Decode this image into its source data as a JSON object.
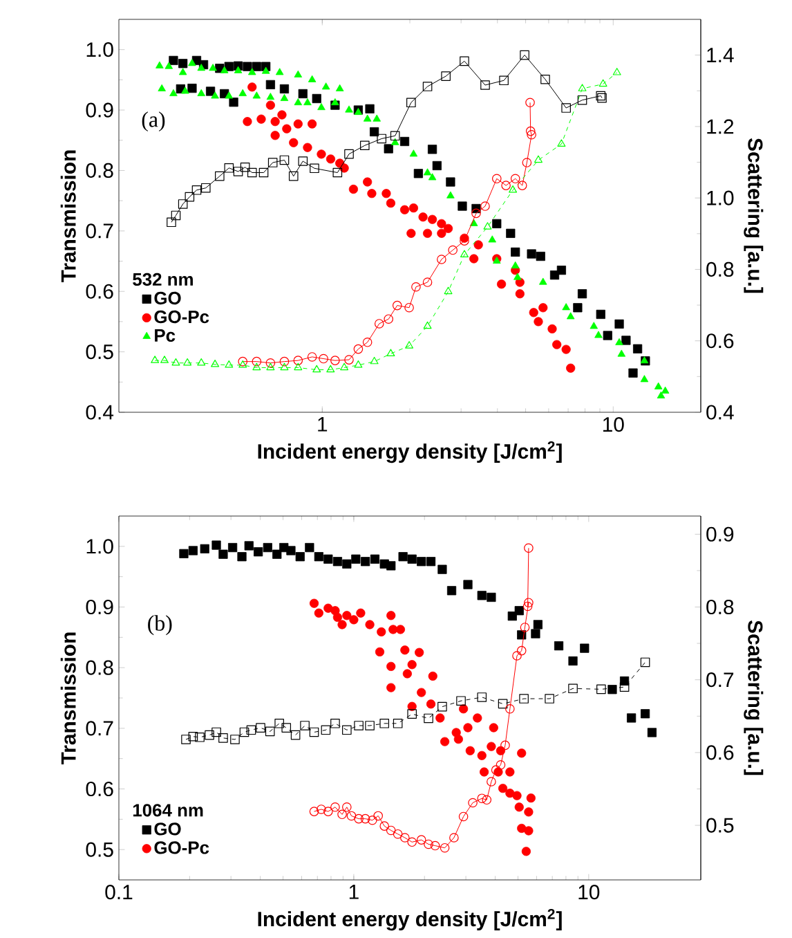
{
  "chart_data": [
    {
      "type": "scatter",
      "xlabel": "Incident energy density [J/cm$^{2}$]",
      "ylabel": "Transmission",
      "y2label": "Scattering [a.u.]",
      "legend_title": "532 nm",
      "legend": "bottom left",
      "log": "x",
      "annotations": [
        "(a)"
      ],
      "xlim": [
        0.2,
        20
      ],
      "xticks": [
        1,
        10
      ],
      "ylim": [
        0.4,
        1.05
      ],
      "yticks": [
        0.4,
        0.5,
        0.6,
        0.7,
        0.8,
        0.9,
        {
          "value": 1.0,
          "label": "1.0"
        }
      ],
      "y2lim": [
        0.4,
        1.5
      ],
      "y2ticks": [
        0.4,
        0.6,
        0.8,
        {
          "value": 1.0,
          "label": "1.0"
        },
        1.2,
        1.4
      ],
      "series": [
        {
          "name": "GO",
          "color": "#000000",
          "marker": "square",
          "x": [
            0.308,
            0.332,
            0.37,
            0.391,
            0.444,
            0.478,
            0.514,
            0.553,
            0.595,
            0.64,
            0.326,
            0.357,
            0.413,
            0.461,
            0.496,
            0.664,
            0.741,
            0.858,
            0.957,
            1.107,
            1.33,
            1.457,
            1.51,
            1.69,
            1.92,
            2.39,
            2.14,
            2.48,
            2.76,
            3.03,
            3.38,
            3.98,
            4.44,
            4.61,
            5.24,
            5.63,
            6.29,
            6.64,
            7.83,
            7.55,
            9.06,
            9.57,
            10.49,
            11.07,
            12.13,
            11.7,
            12.9
          ],
          "values": [
            0.982,
            0.977,
            0.982,
            0.975,
            0.969,
            0.972,
            0.973,
            0.972,
            0.972,
            0.972,
            0.935,
            0.936,
            0.931,
            0.927,
            0.913,
            0.942,
            0.935,
            0.927,
            0.919,
            0.908,
            0.9,
            0.902,
            0.864,
            0.836,
            0.848,
            0.835,
            0.795,
            0.808,
            0.781,
            0.741,
            0.737,
            0.712,
            0.696,
            0.665,
            0.662,
            0.658,
            0.627,
            0.635,
            0.596,
            0.573,
            0.562,
            0.527,
            0.546,
            0.519,
            0.505,
            0.465,
            0.485
          ]
        },
        {
          "name": "GO-Pc",
          "color": "#ff0000",
          "marker": "circle",
          "x": [
            0.574,
            0.553,
            0.617,
            0.664,
            0.689,
            0.727,
            0.755,
            0.826,
            0.923,
            0.689,
            0.797,
            0.89,
            0.993,
            1.069,
            1.149,
            1.19,
            1.28,
            1.43,
            1.48,
            1.66,
            1.72,
            1.92,
            2.06,
            2.22,
            2.39,
            2.57,
            2.02,
            2.3,
            2.57,
            2.71,
            3.08,
            3.44,
            3.32,
            3.98,
            4.61,
            4.78,
            4.13,
            4.78,
            5.33,
            5.74,
            5.53,
            6.17,
            6.4,
            6.89,
            7.14
          ],
          "values": [
            0.938,
            0.881,
            0.885,
            0.908,
            0.881,
            0.892,
            0.869,
            0.877,
            0.877,
            0.858,
            0.846,
            0.838,
            0.827,
            0.819,
            0.812,
            0.804,
            0.769,
            0.781,
            0.762,
            0.762,
            0.746,
            0.735,
            0.738,
            0.723,
            0.719,
            0.712,
            0.696,
            0.696,
            0.696,
            0.704,
            0.688,
            0.677,
            0.654,
            0.654,
            0.635,
            0.615,
            0.612,
            0.596,
            0.565,
            0.573,
            0.55,
            0.538,
            0.512,
            0.504,
            0.473
          ]
        },
        {
          "name": "Pc",
          "color": "#00ff00",
          "marker": "triangle",
          "x": [
            0.276,
            0.297,
            0.332,
            0.357,
            0.384,
            0.421,
            0.461,
            0.514,
            0.574,
            0.64,
            0.714,
            0.826,
            0.923,
            1.03,
            1.149,
            0.281,
            0.308,
            0.338,
            0.384,
            0.428,
            0.478,
            0.533,
            0.595,
            0.664,
            0.741,
            0.826,
            0.89,
            0.993,
            1.107,
            1.236,
            1.33,
            1.43,
            1.54,
            1.78,
            2.06,
            2.3,
            2.39,
            2.76,
            3.32,
            3.84,
            3.98,
            4.61,
            4.69,
            5.74,
            6.89,
            7.14,
            8.58,
            8.9,
            10.49,
            10.68,
            12.8,
            12.8,
            14.3,
            15.1,
            14.6
          ],
          "values": [
            0.973,
            0.972,
            0.962,
            0.977,
            0.969,
            0.969,
            0.965,
            0.965,
            0.962,
            0.964,
            0.962,
            0.958,
            0.95,
            0.938,
            0.935,
            0.935,
            0.927,
            0.931,
            0.927,
            0.923,
            0.923,
            0.927,
            0.923,
            0.921,
            0.919,
            0.912,
            0.912,
            0.904,
            0.912,
            0.9,
            0.896,
            0.885,
            0.885,
            0.846,
            0.827,
            0.796,
            0.788,
            0.758,
            0.712,
            0.685,
            0.65,
            0.642,
            0.623,
            0.615,
            0.573,
            0.558,
            0.542,
            0.527,
            0.515,
            0.496,
            0.485,
            0.454,
            0.442,
            0.435,
            0.427
          ]
        },
        {
          "type": "line",
          "axis": "y2",
          "color": "#000000",
          "marker": "square",
          "line_style": "solid",
          "x": [
            0.303,
            0.314,
            0.332,
            0.35,
            0.37,
            0.398,
            0.444,
            0.478,
            0.514,
            0.543,
            0.574,
            0.629,
            0.676,
            0.741,
            0.797,
            0.858,
            0.94,
            1.128,
            1.236,
            1.4,
            1.6,
            1.78,
            2.02,
            2.3,
            2.66,
            3.08,
            3.63,
            4.21,
            4.96,
            5.84,
            6.89,
            7.83,
            9.06,
            9.15
          ],
          "values": [
            0.932,
            0.951,
            0.983,
            1.003,
            1.022,
            1.028,
            1.061,
            1.084,
            1.074,
            1.086,
            1.071,
            1.071,
            1.099,
            1.106,
            1.061,
            1.103,
            1.083,
            1.071,
            1.123,
            1.147,
            1.166,
            1.174,
            1.267,
            1.312,
            1.341,
            1.383,
            1.316,
            1.329,
            1.4,
            1.332,
            1.252,
            1.274,
            1.286,
            1.28
          ]
        },
        {
          "type": "line",
          "axis": "y2",
          "color": "#ff0000",
          "marker": "circle",
          "line_style": "solid",
          "x": [
            0.533,
            0.595,
            0.664,
            0.741,
            0.826,
            0.923,
            1.01,
            1.107,
            1.236,
            1.33,
            1.43,
            1.57,
            1.69,
            1.81,
            1.99,
            2.1,
            2.3,
            2.57,
            2.81,
            3.08,
            3.38,
            3.63,
            3.98,
            4.28,
            4.61,
            4.87,
            5.05,
            5.24,
            5.2,
            5.18
          ],
          "values": [
            0.542,
            0.542,
            0.538,
            0.542,
            0.545,
            0.555,
            0.55,
            0.545,
            0.547,
            0.577,
            0.596,
            0.648,
            0.661,
            0.699,
            0.693,
            0.751,
            0.764,
            0.828,
            0.854,
            0.88,
            0.957,
            0.977,
            1.054,
            1.035,
            1.054,
            1.035,
            1.099,
            1.177,
            1.187,
            1.267
          ]
        },
        {
          "type": "line",
          "axis": "y2",
          "color": "#00ff00",
          "marker": "triangle",
          "line_style": "dashed",
          "x": [
            0.266,
            0.287,
            0.314,
            0.344,
            0.384,
            0.428,
            0.478,
            0.533,
            0.595,
            0.664,
            0.741,
            0.826,
            0.957,
            1.068,
            1.19,
            1.33,
            1.51,
            1.72,
            1.99,
            2.3,
            2.71,
            3.08,
            3.7,
            4.52,
            5.53,
            6.64,
            7.83,
            9.23,
            10.3
          ],
          "values": [
            0.545,
            0.545,
            0.538,
            0.538,
            0.538,
            0.534,
            0.532,
            0.532,
            0.525,
            0.525,
            0.525,
            0.525,
            0.519,
            0.519,
            0.525,
            0.532,
            0.542,
            0.564,
            0.586,
            0.641,
            0.738,
            0.841,
            0.919,
            1.022,
            1.106,
            1.151,
            1.306,
            1.319,
            1.351
          ]
        }
      ]
    },
    {
      "type": "scatter",
      "xlabel": "Incident energy density [J/cm$^{2}$]",
      "ylabel": "Transmission",
      "y2label": "Scattering [a.u.]",
      "legend_title": "1064 nm",
      "legend": "bottom left",
      "log": "x",
      "annotations": [
        "(b)"
      ],
      "xlim": [
        0.1,
        30
      ],
      "xticks": [
        0.1,
        1,
        10
      ],
      "ylim": [
        0.45,
        1.05
      ],
      "yticks": [
        0.5,
        0.6,
        0.7,
        0.8,
        0.9,
        {
          "value": 1.0,
          "label": "1.0"
        }
      ],
      "y2lim": [
        0.425,
        0.925
      ],
      "y2ticks": [
        0.5,
        0.6,
        0.7,
        0.8,
        0.9
      ],
      "series": [
        {
          "name": "GO",
          "color": "#000000",
          "marker": "square",
          "x": [
            0.189,
            0.207,
            0.232,
            0.26,
            0.278,
            0.305,
            0.334,
            0.358,
            0.392,
            0.43,
            0.471,
            0.504,
            0.54,
            0.591,
            0.648,
            0.71,
            0.778,
            0.853,
            0.934,
            1.02,
            1.12,
            1.23,
            1.35,
            1.44,
            1.62,
            1.77,
            1.94,
            2.13,
            2.38,
            2.61,
            3.06,
            3.51,
            3.85,
            4.73,
            5.06,
            5.18,
            5.94,
            6.08,
            7.46,
            8.57,
            9.6,
            12.6,
            14.2,
            15.2,
            17.4,
            18.6
          ],
          "values": [
            0.988,
            0.993,
            0.996,
            1.002,
            0.987,
            0.998,
            0.983,
            1.001,
            0.991,
            0.998,
            0.987,
            0.998,
            0.993,
            0.983,
            0.998,
            0.983,
            0.979,
            0.975,
            0.971,
            0.979,
            0.975,
            0.979,
            0.971,
            0.968,
            0.983,
            0.979,
            0.975,
            0.975,
            0.962,
            0.927,
            0.937,
            0.919,
            0.916,
            0.885,
            0.894,
            0.854,
            0.856,
            0.871,
            0.836,
            0.811,
            0.832,
            0.764,
            0.778,
            0.717,
            0.724,
            0.693
          ]
        },
        {
          "name": "GO-Pc",
          "color": "#ff0000",
          "marker": "circle",
          "x": [
            0.678,
            0.71,
            0.778,
            0.833,
            0.853,
            0.892,
            0.934,
            1.0,
            1.07,
            1.17,
            1.31,
            1.44,
            1.47,
            1.58,
            1.29,
            1.44,
            1.65,
            1.77,
            1.9,
            1.69,
            1.44,
            1.94,
            2.17,
            1.77,
            2.13,
            2.33,
            2.44,
            2.79,
            2.93,
            3.36,
            3.06,
            2.73,
            3.13,
            3.51,
            3.94,
            3.85,
            4.22,
            3.59,
            4.12,
            4.31,
            4.62,
            4.62,
            5.18,
            4.95,
            5.06,
            5.68,
            5.55,
            5.18,
            5.55,
            5.42
          ],
          "values": [
            0.906,
            0.89,
            0.898,
            0.894,
            0.883,
            0.871,
            0.886,
            0.879,
            0.89,
            0.871,
            0.859,
            0.886,
            0.863,
            0.863,
            0.826,
            0.802,
            0.829,
            0.805,
            0.825,
            0.79,
            0.767,
            0.759,
            0.786,
            0.736,
            0.74,
            0.717,
            0.678,
            0.682,
            0.732,
            0.717,
            0.701,
            0.693,
            0.663,
            0.655,
            0.701,
            0.67,
            0.663,
            0.628,
            0.628,
            0.601,
            0.628,
            0.593,
            0.659,
            0.589,
            0.57,
            0.585,
            0.562,
            0.535,
            0.531,
            0.497
          ]
        },
        {
          "type": "line",
          "axis": "y2",
          "color": "#000000",
          "marker": "square",
          "line_style": "dashed",
          "x": [
            0.193,
            0.207,
            0.221,
            0.243,
            0.26,
            0.278,
            0.312,
            0.342,
            0.366,
            0.401,
            0.44,
            0.482,
            0.516,
            0.565,
            0.619,
            0.678,
            0.76,
            0.833,
            0.934,
            1.05,
            1.17,
            1.35,
            1.54,
            1.77,
            2.08,
            2.38,
            2.86,
            3.51,
            4.31,
            5.3,
            6.81,
            8.57,
            11.3,
            14.2,
            17.4
          ],
          "values": [
            0.618,
            0.622,
            0.621,
            0.624,
            0.628,
            0.62,
            0.618,
            0.628,
            0.631,
            0.634,
            0.629,
            0.64,
            0.634,
            0.624,
            0.637,
            0.628,
            0.631,
            0.64,
            0.631,
            0.637,
            0.637,
            0.64,
            0.64,
            0.653,
            0.647,
            0.663,
            0.671,
            0.676,
            0.667,
            0.674,
            0.674,
            0.688,
            0.687,
            0.69,
            0.724
          ]
        },
        {
          "type": "line",
          "axis": "y2",
          "color": "#ff0000",
          "marker": "circle",
          "line_style": "solid",
          "x": [
            0.678,
            0.727,
            0.778,
            0.833,
            0.892,
            0.934,
            0.977,
            1.05,
            1.12,
            1.2,
            1.27,
            1.35,
            1.44,
            1.54,
            1.65,
            1.77,
            1.94,
            2.08,
            2.22,
            2.44,
            2.67,
            2.93,
            3.21,
            3.51,
            3.68,
            3.85,
            4.03,
            4.22,
            4.41,
            4.62,
            4.95,
            5.18,
            5.35,
            5.55,
            5.5,
            5.55
          ],
          "values": [
            0.519,
            0.522,
            0.519,
            0.525,
            0.515,
            0.525,
            0.513,
            0.509,
            0.509,
            0.507,
            0.513,
            0.499,
            0.493,
            0.488,
            0.483,
            0.477,
            0.48,
            0.474,
            0.472,
            0.469,
            0.483,
            0.512,
            0.531,
            0.537,
            0.535,
            0.56,
            0.576,
            0.583,
            0.61,
            0.66,
            0.733,
            0.74,
            0.772,
            0.806,
            0.801,
            0.881
          ]
        }
      ]
    }
  ]
}
